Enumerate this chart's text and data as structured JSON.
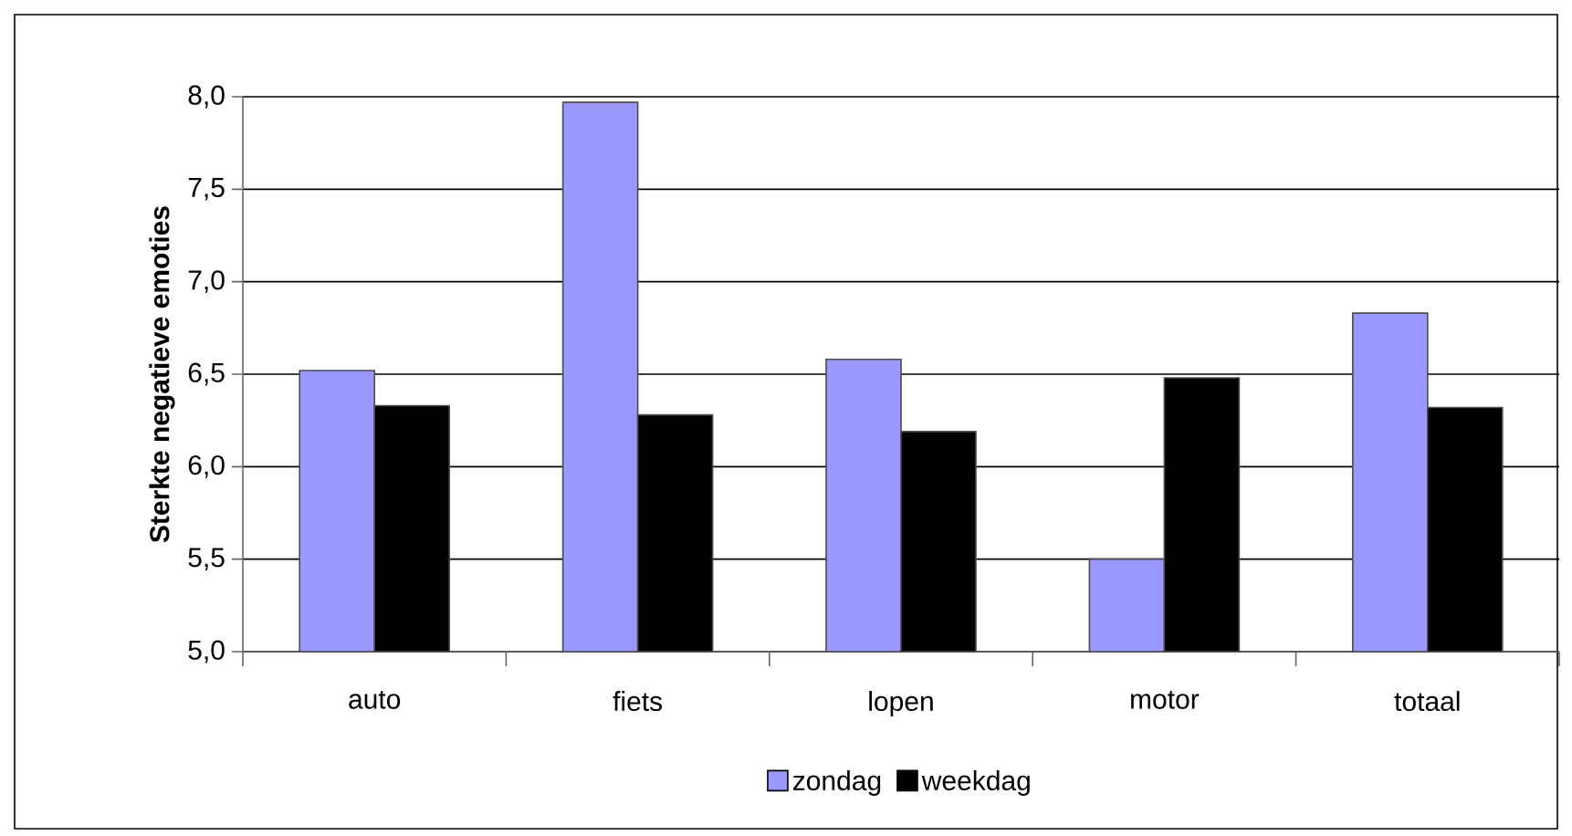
{
  "chart_data": {
    "type": "bar",
    "ylabel": "Sterkte negatieve emoties",
    "categories": [
      "auto",
      "fiets",
      "lopen",
      "motor",
      "totaal"
    ],
    "series": [
      {
        "name": "zondag",
        "color": "#9999ff",
        "values": [
          6.52,
          7.97,
          6.58,
          5.5,
          6.83
        ]
      },
      {
        "name": "weekdag",
        "color": "#000000",
        "values": [
          6.33,
          6.28,
          6.19,
          6.48,
          6.32
        ]
      }
    ],
    "ylim": [
      5,
      8
    ],
    "yticks": [
      {
        "value": 5,
        "label": "5,0"
      },
      {
        "value": 5.5,
        "label": "5,5"
      },
      {
        "value": 6,
        "label": "6,0"
      },
      {
        "value": 6.5,
        "label": "6,5"
      },
      {
        "value": 7,
        "label": "7,0"
      },
      {
        "value": 7.5,
        "label": "7,5"
      },
      {
        "value": 8,
        "label": "8,0"
      }
    ],
    "grid": "y",
    "legend": "bottom"
  }
}
